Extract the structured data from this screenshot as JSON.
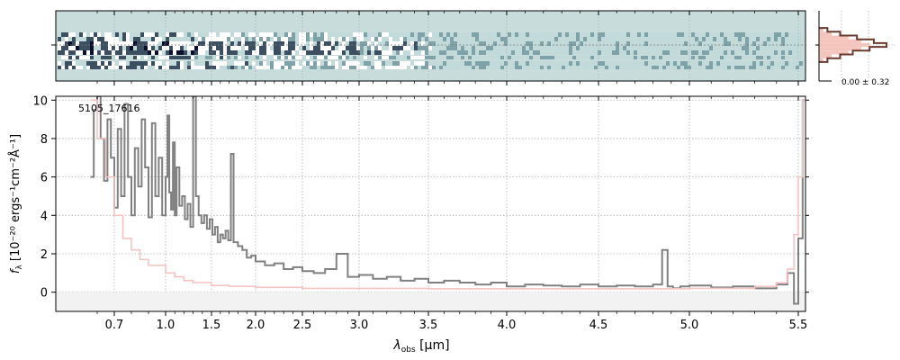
{
  "chart_data": [
    {
      "type": "heatmap",
      "panel": "2d-spectrum",
      "colormap": [
        "#ffffff",
        "#c3dadb",
        "#7fa1a8",
        "#3b4f60",
        "#0b0f2a"
      ],
      "background_color": "#c8dcdc",
      "x_axis": "shared with 1d spectrum (wavelength, micron)",
      "center_line": true
    },
    {
      "type": "line",
      "panel": "1d-spectrum",
      "annotation": "5105_17616",
      "xlabel_text": "λ",
      "xlabel_sub": "obs",
      "xlabel_unit": "[μm]",
      "ylabel_main": "f",
      "ylabel_sub": "λ",
      "ylabel_unit": "[10⁻²⁰ ergs⁻¹cm⁻²Å⁻¹]",
      "x_ticks": [
        0.7,
        1.0,
        1.5,
        2.0,
        2.5,
        3.0,
        3.5,
        4.0,
        4.5,
        5.0,
        5.5
      ],
      "x_tick_labels": [
        "0.7",
        "1.0",
        "1.5",
        "2.0",
        "2.5",
        "3.0",
        "3.5",
        "4.0",
        "4.5",
        "5.0",
        "5.5"
      ],
      "x_scale": "sqrt-like (nonlinear wavelength)",
      "xlim": [
        0.55,
        5.55
      ],
      "y_ticks": [
        0,
        2,
        4,
        6,
        8,
        10
      ],
      "ylim": [
        -1.0,
        10.2
      ],
      "grid": true,
      "series": [
        {
          "role": "flux",
          "color": "#808080",
          "x": [
            0.56,
            0.58,
            0.6,
            0.62,
            0.64,
            0.66,
            0.68,
            0.7,
            0.72,
            0.74,
            0.76,
            0.78,
            0.8,
            0.82,
            0.84,
            0.86,
            0.88,
            0.9,
            0.92,
            0.94,
            0.96,
            0.98,
            1.0,
            1.02,
            1.04,
            1.06,
            1.08,
            1.1,
            1.12,
            1.15,
            1.18,
            1.21,
            1.24,
            1.27,
            1.3,
            1.33,
            1.36,
            1.39,
            1.42,
            1.45,
            1.48,
            1.51,
            1.54,
            1.57,
            1.6,
            1.63,
            1.66,
            1.69,
            1.72,
            1.75,
            1.8,
            1.85,
            1.9,
            1.95,
            2.0,
            2.1,
            2.2,
            2.3,
            2.4,
            2.5,
            2.6,
            2.7,
            2.8,
            2.9,
            3.0,
            3.1,
            3.2,
            3.3,
            3.4,
            3.5,
            3.6,
            3.7,
            3.8,
            3.9,
            4.0,
            4.1,
            4.2,
            4.3,
            4.4,
            4.5,
            4.6,
            4.7,
            4.8,
            4.85,
            4.88,
            4.91,
            4.95,
            5.0,
            5.1,
            5.2,
            5.3,
            5.4,
            5.45,
            5.48,
            5.5,
            5.52
          ],
          "y": [
            6.0,
            9.5,
            10.2,
            8.0,
            5.8,
            9.0,
            7.0,
            4.4,
            8.5,
            5.0,
            9.8,
            6.0,
            4.0,
            7.5,
            5.5,
            9.0,
            6.5,
            3.9,
            8.8,
            5.0,
            7.0,
            4.0,
            6.0,
            9.2,
            5.2,
            4.3,
            7.8,
            4.0,
            6.5,
            4.5,
            5.0,
            3.8,
            4.6,
            3.4,
            10.2,
            5.0,
            4.0,
            3.6,
            4.0,
            3.3,
            3.8,
            3.0,
            3.4,
            2.6,
            3.0,
            2.8,
            3.2,
            2.7,
            7.2,
            2.6,
            2.4,
            2.2,
            1.8,
            1.9,
            1.6,
            1.4,
            1.5,
            1.2,
            1.3,
            1.1,
            1.0,
            1.2,
            2.0,
            0.8,
            0.9,
            0.7,
            0.8,
            0.6,
            0.7,
            0.5,
            0.6,
            0.5,
            0.4,
            0.5,
            0.3,
            0.4,
            0.35,
            0.3,
            0.4,
            0.3,
            0.35,
            0.3,
            0.4,
            2.2,
            0.3,
            0.2,
            0.3,
            0.35,
            0.25,
            0.3,
            0.2,
            0.4,
            1.0,
            -0.6,
            2.8,
            10.0
          ]
        },
        {
          "role": "uncertainty",
          "color": "#f6c3c3",
          "x": [
            0.56,
            0.6,
            0.65,
            0.7,
            0.75,
            0.8,
            0.85,
            0.9,
            1.0,
            1.1,
            1.2,
            1.3,
            1.5,
            1.7,
            2.0,
            2.5,
            3.0,
            3.5,
            4.0,
            4.5,
            5.0,
            5.3,
            5.4,
            5.45,
            5.48,
            5.5,
            5.52
          ],
          "y": [
            10.0,
            8.0,
            6.0,
            4.0,
            2.8,
            2.2,
            1.7,
            1.4,
            1.0,
            0.8,
            0.6,
            0.5,
            0.35,
            0.3,
            0.25,
            0.2,
            0.2,
            0.18,
            0.18,
            0.18,
            0.2,
            0.3,
            0.5,
            1.2,
            3.0,
            6.0,
            10.0
          ]
        }
      ]
    },
    {
      "type": "histogram",
      "panel": "residual-histogram",
      "label": "0.00 ± 0.32",
      "fill_color": "#f4c5bc",
      "line_color": "#6b3a2e",
      "bins_center": [
        -4,
        -3,
        -2,
        -1,
        0,
        1,
        2,
        3,
        4
      ],
      "counts_fill": [
        1,
        3,
        7,
        10,
        12,
        10,
        7,
        3,
        1
      ],
      "counts_line": [
        2,
        5,
        9,
        13,
        16,
        12,
        8,
        5,
        2
      ]
    }
  ]
}
